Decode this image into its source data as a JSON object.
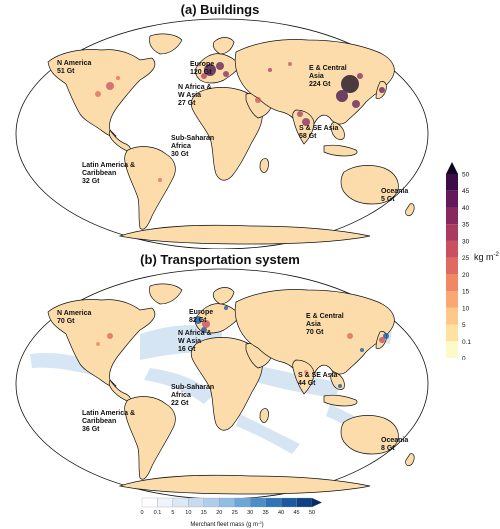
{
  "panels": [
    {
      "title": "(a) Buildings",
      "regions": [
        {
          "id": "na",
          "lines": [
            "N America",
            "51 Gt"
          ]
        },
        {
          "id": "eu",
          "lines": [
            "Europe",
            "120 Gt"
          ]
        },
        {
          "id": "ec",
          "lines": [
            "E & Central",
            "Asia",
            "224 Gt"
          ]
        },
        {
          "id": "nw",
          "lines": [
            "N Africa &",
            "W Asia",
            "27 Gt"
          ]
        },
        {
          "id": "ss",
          "lines": [
            "S & SE Asia",
            "58 Gt"
          ]
        },
        {
          "id": "sa",
          "lines": [
            "Sub-Saharan",
            "Africa",
            "30 Gt"
          ]
        },
        {
          "id": "la",
          "lines": [
            "Latin America &",
            "Caribbean",
            "32 Gt"
          ]
        },
        {
          "id": "oc",
          "lines": [
            "Oceania",
            "5 Gt"
          ]
        }
      ]
    },
    {
      "title": "(b) Transportation system",
      "regions": [
        {
          "id": "na",
          "lines": [
            "N America",
            "70 Gt"
          ]
        },
        {
          "id": "eu",
          "lines": [
            "Europe",
            "82 Gt"
          ]
        },
        {
          "id": "ec",
          "lines": [
            "E & Central",
            "Asia",
            "70 Gt"
          ]
        },
        {
          "id": "nw",
          "lines": [
            "N Africa &",
            "W Asia",
            "16 Gt"
          ]
        },
        {
          "id": "ss",
          "lines": [
            "S & SE Asia",
            "44 Gt"
          ]
        },
        {
          "id": "sa",
          "lines": [
            "Sub-Saharan",
            "Africa",
            "22 Gt"
          ]
        },
        {
          "id": "la",
          "lines": [
            "Latin America &",
            "Caribbean",
            "36 Gt"
          ]
        },
        {
          "id": "oc",
          "lines": [
            "Oceania",
            "8 Gt"
          ]
        }
      ]
    }
  ],
  "colorbar_main": {
    "unit": "kg m",
    "unit_sup": "-2",
    "ticks": [
      "0",
      "0.1",
      "5",
      "10",
      "15",
      "20",
      "25",
      "30",
      "35",
      "40",
      "45",
      "50"
    ],
    "colors": [
      "#fff8c8",
      "#fee3a0",
      "#fdc88a",
      "#f9a874",
      "#f08866",
      "#de6a62",
      "#c8505f",
      "#aa3b60",
      "#87295f",
      "#63195a",
      "#3d0d4a",
      "#12051f"
    ]
  },
  "colorbar_fleet": {
    "label": "Merchant fleet mass (g m",
    "label_sup": "-2",
    "label_end": ")",
    "ticks": [
      "0",
      "0.1",
      "5",
      "10",
      "15",
      "20",
      "25",
      "30",
      "35",
      "40",
      "45",
      "50"
    ],
    "colors": [
      "#ffffff",
      "#eef4fb",
      "#dbe9f6",
      "#c6dbef",
      "#aecdea",
      "#8fbde3",
      "#6aa6d8",
      "#4a8fca",
      "#2f74b8",
      "#1c5aa0",
      "#0e4184",
      "#082c64"
    ]
  }
}
